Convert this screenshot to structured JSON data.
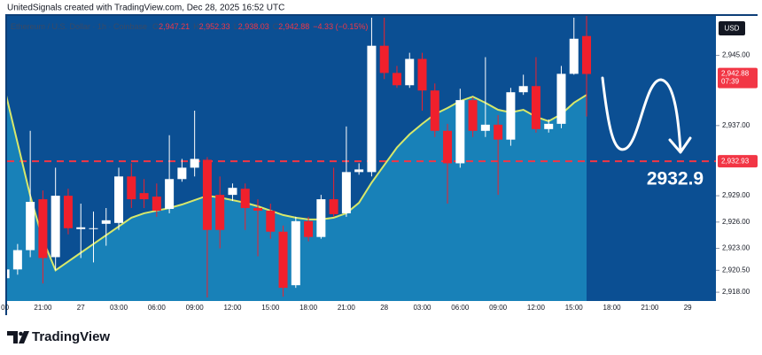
{
  "header": "UnitedSignals created with TradingView.com, Dec 28, 2025 16:52 UTC",
  "brand": "TradingView",
  "currency_button": "USD",
  "chart_data": {
    "type": "candlestick",
    "legend": {
      "symbol": "Ethereum / U.S. Dollar · 1h · Coinbase",
      "items": [
        {
          "key": "O",
          "value": "2,947.21"
        },
        {
          "key": "H",
          "value": "2,952.33"
        },
        {
          "key": "L",
          "value": "2,938.03"
        },
        {
          "key": "C",
          "value": "2,942.88"
        }
      ],
      "change": "−4.33 (−0.15%)"
    },
    "categories": [
      "00",
      null,
      null,
      "21:00",
      null,
      null,
      "27",
      null,
      null,
      "03:00",
      null,
      null,
      "06:00",
      null,
      null,
      "09:00",
      null,
      null,
      "12:00",
      null,
      null,
      "15:00",
      null,
      null,
      "18:00",
      null,
      null,
      "21:00",
      null,
      null,
      "28",
      null,
      null,
      "03:00",
      null,
      null,
      "06:00",
      null,
      null,
      "09:00",
      null,
      null,
      "12:00",
      null,
      null,
      "15:00",
      null,
      null,
      "18:00",
      null,
      null,
      "21:00",
      null,
      null,
      "29",
      null,
      null
    ],
    "open": [
      2919.6,
      2920.6,
      2922.8,
      2928.6,
      2922,
      2929,
      2925.2,
      2925.3,
      2925.8,
      2925.9,
      2931.2,
      2929.3,
      2928.9,
      2927.5,
      2930.9,
      2932.2,
      2933.1,
      2929.1,
      2929.1,
      2929.8,
      2927.6,
      2927.3,
      2924.9,
      2918.8,
      2926.1,
      2924.3,
      2928.6,
      2927,
      2931.7,
      2931.7,
      2946.1,
      2943,
      2941.6,
      2944.6,
      2941,
      2936.4,
      2932.7,
      2939.9,
      2936.4,
      2937.1,
      2935.4,
      2940.8,
      2941.5,
      2936.6,
      2937.2,
      2942.9,
      2947.21,
      null,
      null,
      null,
      null,
      null,
      null,
      null,
      null,
      null,
      null
    ],
    "high": [
      2921,
      2923.5,
      2936.4,
      2929.6,
      2932.2,
      2929.8,
      2928.1,
      2927.2,
      2927.6,
      2932.2,
      2932.7,
      2930.9,
      2930.4,
      2935.9,
      2933.2,
      2938.7,
      2933.4,
      2931.2,
      2930.4,
      2930.4,
      2928.6,
      2928.1,
      2925.6,
      2926.6,
      2926.6,
      2929.1,
      2932.2,
      2936.9,
      2932.7,
      2949.3,
      2949.3,
      2943.8,
      2945.3,
      2945.3,
      2941.8,
      2937.2,
      2941.2,
      2940.2,
      2944.8,
      2938.2,
      2941.3,
      2942.8,
      2944.8,
      2937.7,
      2943.8,
      2949.3,
      2952.33,
      null,
      null,
      null,
      null,
      null,
      null,
      null,
      null,
      null,
      null
    ],
    "low": [
      2919,
      2920,
      2922,
      2919,
      2920.5,
      2924.6,
      2921.9,
      2921.4,
      2923.3,
      2925.1,
      2927.6,
      2927.6,
      2926.6,
      2927,
      2930.6,
      2931.2,
      2917.4,
      2923,
      2928.4,
      2925.1,
      2922.1,
      2924.1,
      2917.5,
      2918.5,
      2923.8,
      2924.1,
      2926.6,
      2926.6,
      2931.4,
      2931.2,
      2942.3,
      2941.3,
      2941.3,
      2938.7,
      2935.7,
      2928.1,
      2932.2,
      2935.7,
      2935.7,
      2929.1,
      2934.7,
      2940.5,
      2936.2,
      2936.2,
      2936.7,
      2942.8,
      2938.03,
      null,
      null,
      null,
      null,
      null,
      null,
      null,
      null,
      null,
      null
    ],
    "close": [
      2920.6,
      2922.8,
      2928.3,
      2921.9,
      2929,
      2925.3,
      2925.4,
      2925.3,
      2926.2,
      2931.2,
      2928.6,
      2928.6,
      2927.3,
      2930.9,
      2932.2,
      2933.2,
      2925.1,
      2925.1,
      2929.9,
      2927.6,
      2927.3,
      2924.9,
      2918.5,
      2926.1,
      2924.3,
      2928.6,
      2926.9,
      2931.7,
      2932,
      2946.1,
      2943,
      2941.6,
      2944.6,
      2941,
      2936.4,
      2932.7,
      2939.9,
      2936.4,
      2937.1,
      2935.4,
      2940.8,
      2941.5,
      2936.6,
      2937.2,
      2942.9,
      2946.9,
      2942.88,
      null,
      null,
      null,
      null,
      null,
      null,
      null,
      null,
      null,
      null
    ],
    "ma": [
      2941,
      2935,
      2929,
      2924,
      2920.5,
      2921.5,
      2922.5,
      2923.5,
      2924.5,
      2925.5,
      2926.5,
      2927,
      2927.3,
      2927.6,
      2928,
      2928.5,
      2929,
      2928.8,
      2928.5,
      2928.2,
      2927.8,
      2927.3,
      2926.8,
      2926.5,
      2926.3,
      2926.3,
      2926.5,
      2927,
      2928.2,
      2930.5,
      2932.5,
      2934.5,
      2936,
      2937.2,
      2938.3,
      2939,
      2939.8,
      2940.3,
      2939.6,
      2938.8,
      2938.5,
      2938.8,
      2938,
      2937.5,
      2938.3,
      2939.6,
      2940.5,
      null,
      null,
      null,
      null,
      null,
      null,
      null,
      null,
      null,
      null
    ],
    "up_color": "#ffffff",
    "down_color": "#f0202c",
    "ma_color": "#d8e86a",
    "ylim": [
      2917.0,
      2949.5
    ],
    "yticks": [
      {
        "value": 2945,
        "label": "2,945.00"
      },
      {
        "value": 2937,
        "label": "2,937.00"
      },
      {
        "value": 2929,
        "label": "2,929.00"
      },
      {
        "value": 2926,
        "label": "2,926.00"
      },
      {
        "value": 2923,
        "label": "2,923.00"
      },
      {
        "value": 2920.5,
        "label": "2,920.50"
      },
      {
        "value": 2918,
        "label": "2,918.00"
      }
    ],
    "last_price": {
      "value": 2942.88,
      "label": "2,942.88",
      "countdown": "07:39"
    },
    "level_line": {
      "value": 2932.93,
      "label": "2,932.93"
    },
    "annotation": "2932.9"
  }
}
